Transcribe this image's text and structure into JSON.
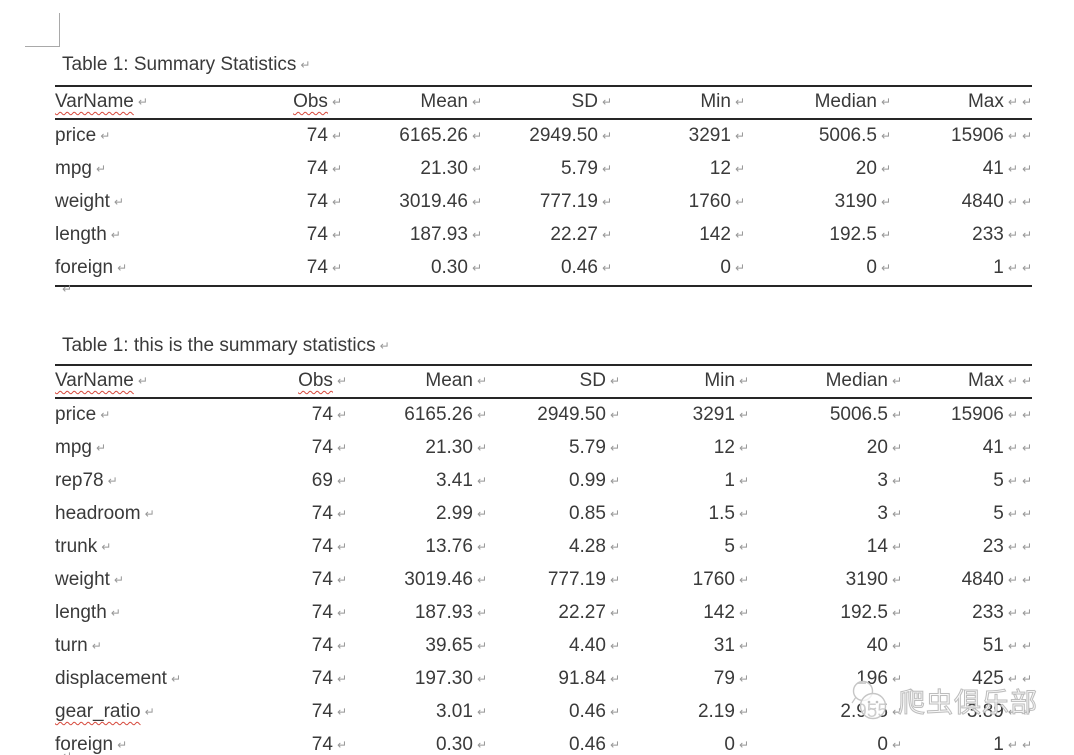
{
  "marks": {
    "pilcrow": "↵"
  },
  "misspelled": [
    "VarName",
    "Obs",
    "gear_ratio"
  ],
  "watermark": {
    "text": "爬虫俱乐部",
    "logo": "bug-mascot-logo"
  },
  "sections": [
    {
      "title": "Table 1: Summary Statistics",
      "columns": [
        "VarName",
        "Obs",
        "Mean",
        "SD",
        "Min",
        "Median",
        "Max"
      ],
      "rows": [
        [
          "price",
          "74",
          "6165.26",
          "2949.50",
          "3291",
          "5006.5",
          "15906"
        ],
        [
          "mpg",
          "74",
          "21.30",
          "5.79",
          "12",
          "20",
          "41"
        ],
        [
          "weight",
          "74",
          "3019.46",
          "777.19",
          "1760",
          "3190",
          "4840"
        ],
        [
          "length",
          "74",
          "187.93",
          "22.27",
          "142",
          "192.5",
          "233"
        ],
        [
          "foreign",
          "74",
          "0.30",
          "0.46",
          "0",
          "0",
          "1"
        ]
      ]
    },
    {
      "title": "Table 1: this is the summary statistics",
      "columns": [
        "VarName",
        "Obs",
        "Mean",
        "SD",
        "Min",
        "Median",
        "Max"
      ],
      "rows": [
        [
          "price",
          "74",
          "6165.26",
          "2949.50",
          "3291",
          "5006.5",
          "15906"
        ],
        [
          "mpg",
          "74",
          "21.30",
          "5.79",
          "12",
          "20",
          "41"
        ],
        [
          "rep78",
          "69",
          "3.41",
          "0.99",
          "1",
          "3",
          "5"
        ],
        [
          "headroom",
          "74",
          "2.99",
          "0.85",
          "1.5",
          "3",
          "5"
        ],
        [
          "trunk",
          "74",
          "13.76",
          "4.28",
          "5",
          "14",
          "23"
        ],
        [
          "weight",
          "74",
          "3019.46",
          "777.19",
          "1760",
          "3190",
          "4840"
        ],
        [
          "length",
          "74",
          "187.93",
          "22.27",
          "142",
          "192.5",
          "233"
        ],
        [
          "turn",
          "74",
          "39.65",
          "4.40",
          "31",
          "40",
          "51"
        ],
        [
          "displacement",
          "74",
          "197.30",
          "91.84",
          "79",
          "196",
          "425"
        ],
        [
          "gear_ratio",
          "74",
          "3.01",
          "0.46",
          "2.19",
          "2.955",
          "3.89"
        ],
        [
          "foreign",
          "74",
          "0.30",
          "0.46",
          "0",
          "0",
          "1"
        ]
      ]
    }
  ]
}
